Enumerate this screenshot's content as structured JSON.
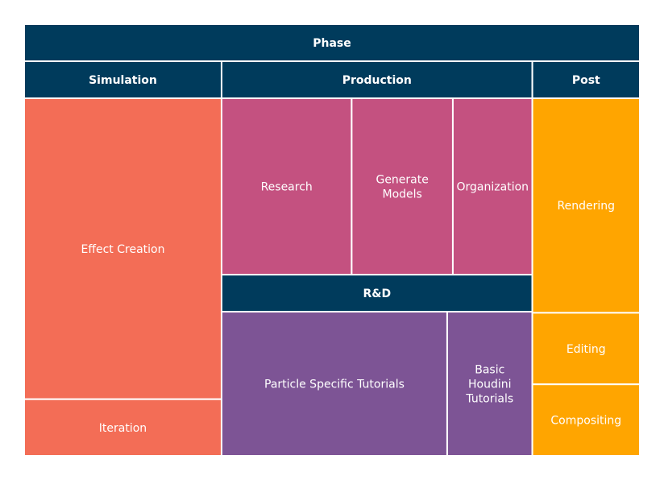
{
  "chart_data": {
    "type": "treemap",
    "title": "Phase",
    "groups": [
      {
        "name": "Simulation",
        "color": "#f36d56",
        "items": [
          {
            "name": "Effect Creation",
            "value": 85
          },
          {
            "name": "Iteration",
            "value": 16
          }
        ]
      },
      {
        "name": "Production",
        "color": "#c45180",
        "items": [
          {
            "name": "Research",
            "value": 36
          },
          {
            "name": "Generate Models",
            "value": 28
          },
          {
            "name": "Organization",
            "value": 22
          }
        ]
      },
      {
        "name": "R&D",
        "color": "#7d5495",
        "items": [
          {
            "name": "Particle Specific Tutorials",
            "value": 53
          },
          {
            "name": "Basic Houdini Tutorials",
            "value": 20
          }
        ]
      },
      {
        "name": "Post",
        "color": "#ffa500",
        "items": [
          {
            "name": "Rendering",
            "value": 33
          },
          {
            "name": "Editing",
            "value": 11
          },
          {
            "name": "Compositing",
            "value": 11
          }
        ]
      }
    ],
    "header_color": "#003b5c",
    "border_color": "#ffffff"
  }
}
